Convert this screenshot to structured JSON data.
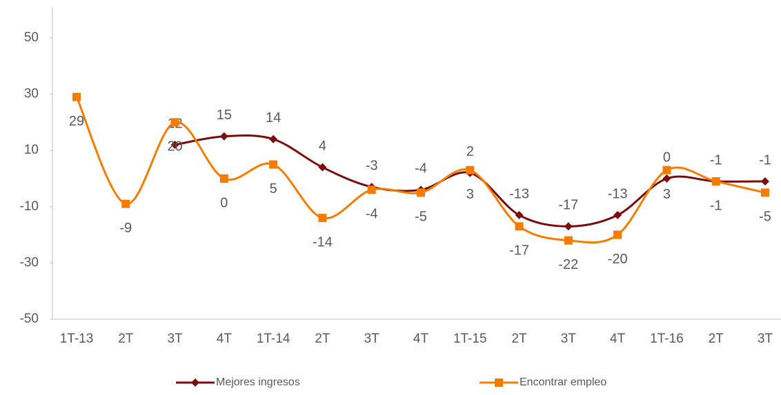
{
  "chart_data": {
    "type": "line",
    "categories": [
      "1T-13",
      "2T",
      "3T",
      "4T",
      "1T-14",
      "2T",
      "3T",
      "4T",
      "1T-15",
      "2T",
      "3T",
      "4T",
      "1T-16",
      "2T",
      "3T"
    ],
    "series": [
      {
        "name": "Mejores ingresos",
        "color": "#7b0c0c",
        "marker": "diamond",
        "values": [
          null,
          null,
          12,
          15,
          14,
          4,
          -3,
          -4,
          2,
          -13,
          -17,
          -13,
          0,
          -1,
          -1
        ]
      },
      {
        "name": "Encontrar empleo",
        "color": "#f57c00",
        "marker": "square",
        "values": [
          29,
          -9,
          20,
          0,
          5,
          -14,
          -4,
          -5,
          3,
          -17,
          -22,
          -20,
          3,
          -1,
          -5
        ]
      }
    ],
    "ylim": [
      -50,
      50
    ],
    "yticks": [
      -50,
      -30,
      -10,
      10,
      30,
      50
    ],
    "grid": false,
    "smooth": true,
    "legend": "bottom"
  }
}
